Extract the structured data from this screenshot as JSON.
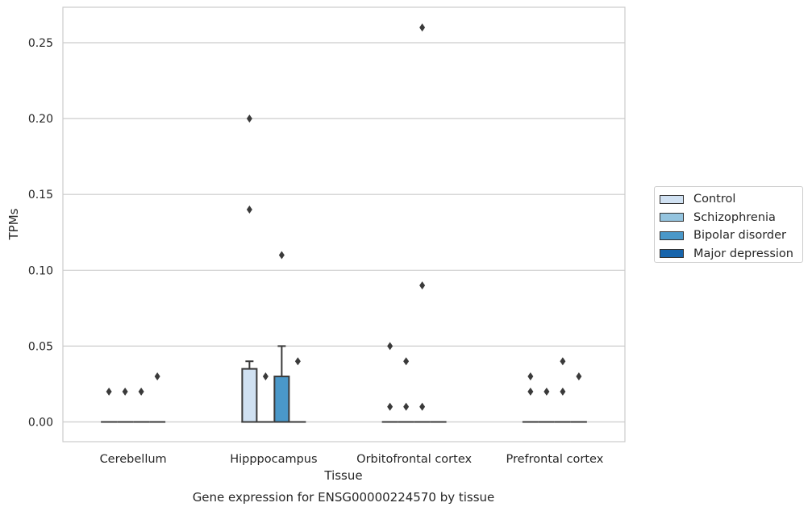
{
  "chart_data": {
    "type": "box",
    "title": "",
    "caption": "Gene expression for ENSG00000224570 by tissue",
    "xlabel": "Tissue",
    "ylabel": "TPMs",
    "ylim": [
      -0.0125,
      0.2735
    ],
    "yticks": [
      "0.00",
      "0.05",
      "0.10",
      "0.15",
      "0.20",
      "0.25"
    ],
    "grid": "horizontal",
    "legend_position": "right",
    "categories": [
      "Cerebellum",
      "Hipppocampus",
      "Orbitofrontal cortex",
      "Prefrontal cortex"
    ],
    "series": [
      {
        "name": "Control",
        "color": "#d0e1f2",
        "boxes": [
          {
            "q1": 0,
            "median": 0,
            "q3": 0,
            "whisker_low": 0,
            "whisker_high": 0,
            "outliers": [
              0.02
            ]
          },
          {
            "q1": 0,
            "median": 0,
            "q3": 0.035,
            "whisker_low": 0,
            "whisker_high": 0.04,
            "outliers": [
              0.2,
              0.14
            ]
          },
          {
            "q1": 0,
            "median": 0,
            "q3": 0,
            "whisker_low": 0,
            "whisker_high": 0,
            "outliers": [
              0.05,
              0.01
            ]
          },
          {
            "q1": 0,
            "median": 0,
            "q3": 0,
            "whisker_low": 0,
            "whisker_high": 0,
            "outliers": [
              0.03,
              0.02
            ]
          }
        ]
      },
      {
        "name": "Schizophrenia",
        "color": "#94c4df",
        "boxes": [
          {
            "q1": 0,
            "median": 0,
            "q3": 0,
            "whisker_low": 0,
            "whisker_high": 0,
            "outliers": [
              0.02
            ]
          },
          {
            "q1": 0,
            "median": 0,
            "q3": 0,
            "whisker_low": 0,
            "whisker_high": 0,
            "outliers": [
              0.03
            ]
          },
          {
            "q1": 0,
            "median": 0,
            "q3": 0,
            "whisker_low": 0,
            "whisker_high": 0,
            "outliers": [
              0.04,
              0.01
            ]
          },
          {
            "q1": 0,
            "median": 0,
            "q3": 0,
            "whisker_low": 0,
            "whisker_high": 0,
            "outliers": [
              0.02
            ]
          }
        ]
      },
      {
        "name": "Bipolar disorder",
        "color": "#4a98c9",
        "boxes": [
          {
            "q1": 0,
            "median": 0,
            "q3": 0,
            "whisker_low": 0,
            "whisker_high": 0,
            "outliers": [
              0.02
            ]
          },
          {
            "q1": 0,
            "median": 0,
            "q3": 0.03,
            "whisker_low": 0,
            "whisker_high": 0.05,
            "outliers": [
              0.11
            ]
          },
          {
            "q1": 0,
            "median": 0,
            "q3": 0,
            "whisker_low": 0,
            "whisker_high": 0,
            "outliers": [
              0.26,
              0.09,
              0.01
            ]
          },
          {
            "q1": 0,
            "median": 0,
            "q3": 0,
            "whisker_low": 0,
            "whisker_high": 0,
            "outliers": [
              0.04,
              0.02
            ]
          }
        ]
      },
      {
        "name": "Major depression",
        "color": "#1764ab",
        "boxes": [
          {
            "q1": 0,
            "median": 0,
            "q3": 0,
            "whisker_low": 0,
            "whisker_high": 0,
            "outliers": [
              0.03
            ]
          },
          {
            "q1": 0,
            "median": 0,
            "q3": 0,
            "whisker_low": 0,
            "whisker_high": 0,
            "outliers": [
              0.04
            ]
          },
          {
            "q1": 0,
            "median": 0,
            "q3": 0,
            "whisker_low": 0,
            "whisker_high": 0,
            "outliers": []
          },
          {
            "q1": 0,
            "median": 0,
            "q3": 0,
            "whisker_low": 0,
            "whisker_high": 0,
            "outliers": [
              0.03
            ]
          }
        ]
      }
    ]
  }
}
